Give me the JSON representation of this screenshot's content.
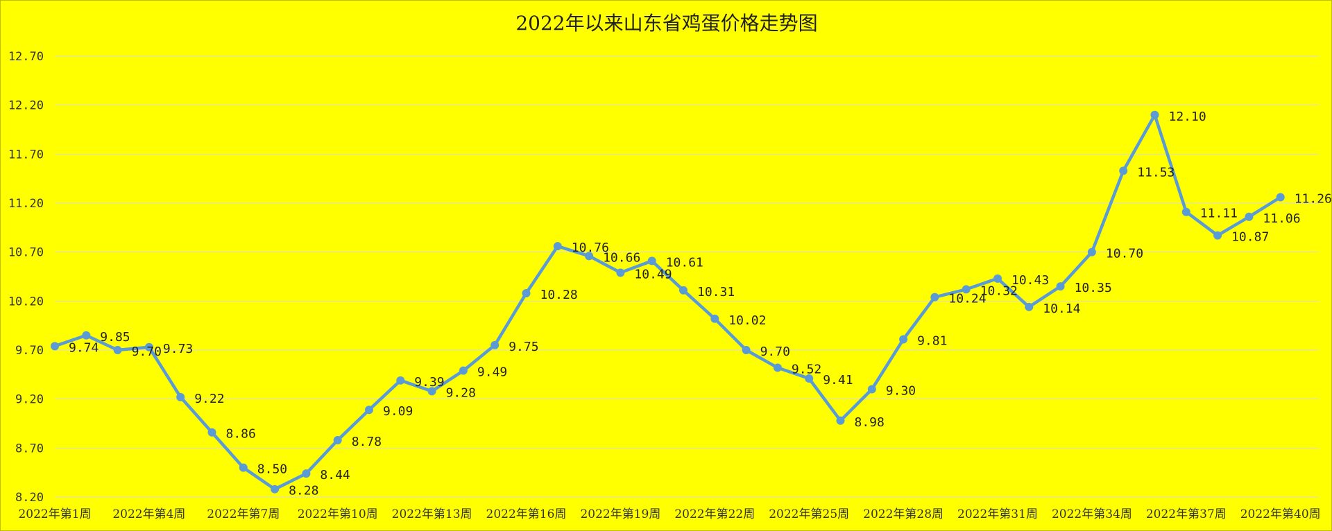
{
  "chart_data": {
    "type": "line",
    "title": "2022年以来山东省鸡蛋价格走势图",
    "xlabel": "",
    "ylabel": "",
    "ylim": [
      8.2,
      12.7
    ],
    "y_ticks": [
      "8.20",
      "8.70",
      "9.20",
      "9.70",
      "10.20",
      "10.70",
      "11.20",
      "11.70",
      "12.20",
      "12.70"
    ],
    "x_tick_labels": [
      {
        "week": 1,
        "label": "2022年第1周"
      },
      {
        "week": 4,
        "label": "2022年第4周"
      },
      {
        "week": 7,
        "label": "2022年第7周"
      },
      {
        "week": 10,
        "label": "2022年第10周"
      },
      {
        "week": 13,
        "label": "2022年第13周"
      },
      {
        "week": 16,
        "label": "2022年第16周"
      },
      {
        "week": 19,
        "label": "2022年第19周"
      },
      {
        "week": 22,
        "label": "2022年第22周"
      },
      {
        "week": 25,
        "label": "2022年第25周"
      },
      {
        "week": 28,
        "label": "2022年第28周"
      },
      {
        "week": 31,
        "label": "2022年第31周"
      },
      {
        "week": 34,
        "label": "2022年第34周"
      },
      {
        "week": 37,
        "label": "2022年第37周"
      },
      {
        "week": 40,
        "label": "2022年第40周"
      }
    ],
    "grid": true,
    "legend": "none",
    "series": [
      {
        "color": "#5b9bd5",
        "weeks": [
          1,
          2,
          3,
          4,
          5,
          6,
          7,
          8,
          9,
          10,
          11,
          12,
          13,
          14,
          15,
          16,
          17,
          18,
          19,
          20,
          21,
          22,
          23,
          24,
          25,
          26,
          27,
          28,
          29,
          30,
          31,
          32,
          33,
          34,
          35,
          36,
          37,
          38,
          39,
          40
        ],
        "values": [
          9.74,
          9.85,
          9.7,
          9.73,
          9.22,
          8.86,
          8.5,
          8.28,
          8.44,
          8.78,
          9.09,
          9.39,
          9.28,
          9.49,
          9.75,
          10.28,
          10.76,
          10.66,
          10.49,
          10.61,
          10.31,
          10.02,
          9.7,
          9.52,
          9.41,
          8.98,
          9.3,
          9.81,
          10.24,
          10.32,
          10.43,
          10.14,
          10.35,
          10.7,
          11.53,
          12.1,
          11.11,
          10.87,
          11.06,
          11.26
        ],
        "labels": [
          "9.74",
          "9.85",
          "9.70",
          "9.73",
          "9.22",
          "8.86",
          "8.50",
          "8.28",
          "8.44",
          "8.78",
          "9.09",
          "9.39",
          "9.28",
          "9.49",
          "9.75",
          "10.28",
          "10.76",
          "10.66",
          "10.49",
          "10.61",
          "10.31",
          "10.02",
          "9.70",
          "9.52",
          "9.41",
          "8.98",
          "9.30",
          "9.81",
          "10.24",
          "10.32",
          "10.43",
          "10.14",
          "10.35",
          "10.70",
          "11.53",
          "12.10",
          "11.11",
          "10.87",
          "11.06",
          "11.26"
        ]
      }
    ]
  }
}
